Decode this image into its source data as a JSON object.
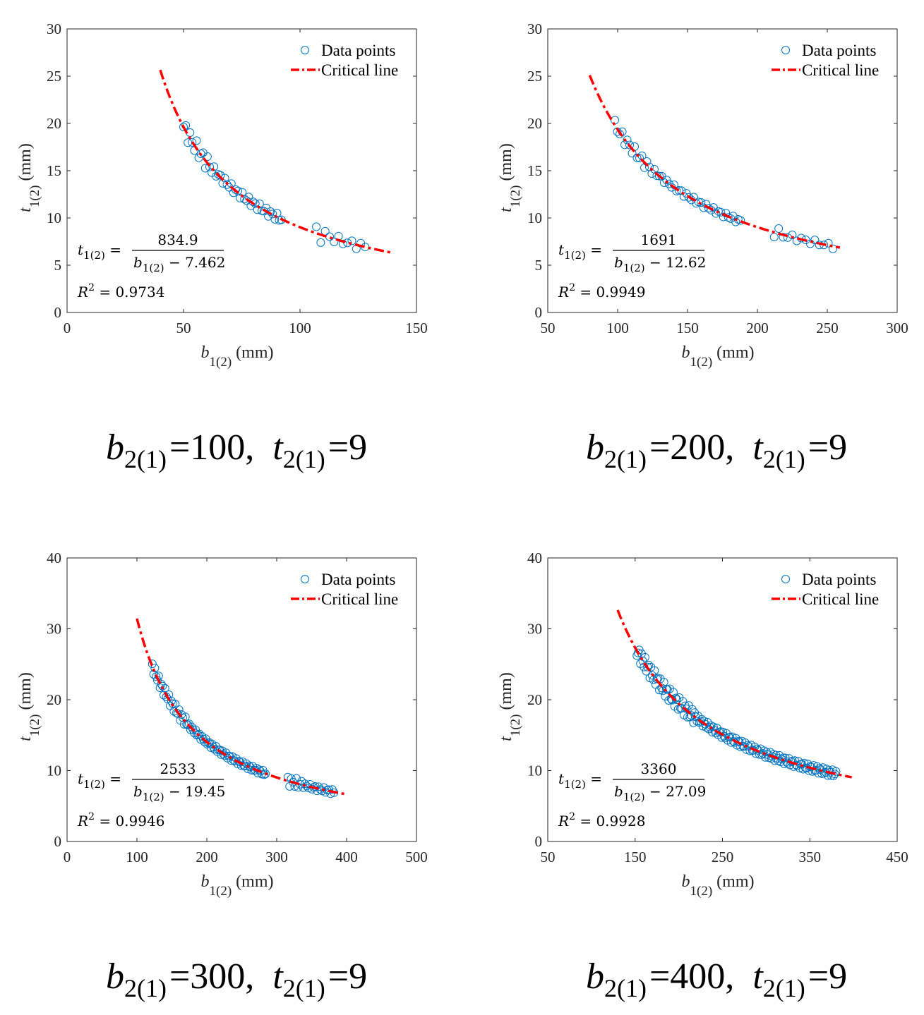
{
  "chart_data": [
    {
      "type": "scatter",
      "xlim": [
        0,
        150
      ],
      "xticks": [
        0,
        50,
        100,
        150
      ],
      "ylim": [
        0,
        30
      ],
      "yticks": [
        0,
        5,
        10,
        15,
        20,
        25,
        30
      ],
      "xlabel": "b",
      "xlabel_sub": "1(2)",
      "xlabel_unit": " (mm)",
      "ylabel": "t",
      "ylabel_sub": "1(2)",
      "ylabel_unit": " (mm)",
      "legend": [
        "Data points",
        "Critical line"
      ],
      "fit": {
        "a": 834.9,
        "b": 7.462,
        "x_range": [
          40,
          139
        ]
      },
      "equation": {
        "lhs": "t",
        "lhs_sub": "1(2)",
        "eq": " =",
        "numerator": "834.9",
        "den_var": "b",
        "den_sub": "1(2)",
        "den_rest": " − 7.462"
      },
      "r2": {
        "label": "R",
        "sup": "2",
        "value": " = 0.9734"
      },
      "points": {
        "segments": [
          {
            "x_range": [
              50,
              92
            ],
            "count": 46
          },
          {
            "x_range": [
              107,
              128
            ],
            "count": 12
          }
        ],
        "scatter": 0.6
      },
      "caption": {
        "b_var": "b",
        "b_sub": "2(1)",
        "b_val": "=100,",
        "t_var": "t",
        "t_sub": "2(1)",
        "t_val": "=9"
      }
    },
    {
      "type": "scatter",
      "xlim": [
        50,
        300
      ],
      "xticks": [
        50,
        100,
        150,
        200,
        250,
        300
      ],
      "ylim": [
        0,
        30
      ],
      "yticks": [
        0,
        5,
        10,
        15,
        20,
        25,
        30
      ],
      "xlabel": "b",
      "xlabel_sub": "1(2)",
      "xlabel_unit": " (mm)",
      "ylabel": "t",
      "ylabel_sub": "1(2)",
      "ylabel_unit": " (mm)",
      "legend": [
        "Data points",
        "Critical line"
      ],
      "fit": {
        "a": 1691,
        "b": 12.62,
        "x_range": [
          80,
          259
        ]
      },
      "equation": {
        "lhs": "t",
        "lhs_sub": "1(2)",
        "eq": " =",
        "numerator": "1691",
        "den_var": "b",
        "den_sub": "1(2)",
        "den_rest": " − 12.62"
      },
      "r2": {
        "label": "R",
        "sup": "2",
        "value": " = 0.9949"
      },
      "points": {
        "segments": [
          {
            "x_range": [
              98,
              188
            ],
            "count": 52
          },
          {
            "x_range": [
              212,
              254
            ],
            "count": 14
          }
        ],
        "scatter": 0.4
      },
      "caption": {
        "b_var": "b",
        "b_sub": "2(1)",
        "b_val": "=200,",
        "t_var": "t",
        "t_sub": "2(1)",
        "t_val": "=9"
      }
    },
    {
      "type": "scatter",
      "xlim": [
        0,
        500
      ],
      "xticks": [
        0,
        100,
        200,
        300,
        400,
        500
      ],
      "ylim": [
        0,
        40
      ],
      "yticks": [
        0,
        10,
        20,
        30,
        40
      ],
      "xlabel": "b",
      "xlabel_sub": "1(2)",
      "xlabel_unit": " (mm)",
      "ylabel": "t",
      "ylabel_sub": "1(2)",
      "ylabel_unit": " (mm)",
      "legend": [
        "Data points",
        "Critical line"
      ],
      "fit": {
        "a": 2533,
        "b": 19.45,
        "x_range": [
          100,
          398
        ]
      },
      "equation": {
        "lhs": "t",
        "lhs_sub": "1(2)",
        "eq": " =",
        "numerator": "2533",
        "den_var": "b",
        "den_sub": "1(2)",
        "den_rest": " − 19.45"
      },
      "r2": {
        "label": "R",
        "sup": "2",
        "value": " = 0.9946"
      },
      "points": {
        "segments": [
          {
            "x_range": [
              122,
              284
            ],
            "count": 90
          },
          {
            "x_range": [
              316,
              382
            ],
            "count": 28
          }
        ],
        "scatter": 0.5
      },
      "caption": {
        "b_var": "b",
        "b_sub": "2(1)",
        "b_val": "=300,",
        "t_var": "t",
        "t_sub": "2(1)",
        "t_val": "=9"
      }
    },
    {
      "type": "scatter",
      "xlim": [
        50,
        450
      ],
      "xticks": [
        50,
        150,
        250,
        350,
        450
      ],
      "ylim": [
        0,
        40
      ],
      "yticks": [
        0,
        10,
        20,
        30,
        40
      ],
      "xlabel": "b",
      "xlabel_sub": "1(2)",
      "xlabel_unit": " (mm)",
      "ylabel": "t",
      "ylabel_sub": "1(2)",
      "ylabel_unit": " (mm)",
      "legend": [
        "Data points",
        "Critical line"
      ],
      "fit": {
        "a": 3360,
        "b": 27.09,
        "x_range": [
          130,
          398
        ]
      },
      "equation": {
        "lhs": "t",
        "lhs_sub": "1(2)",
        "eq": " =",
        "numerator": "3360",
        "den_var": "b",
        "den_sub": "1(2)",
        "den_rest": " − 27.09"
      },
      "r2": {
        "label": "R",
        "sup": "2",
        "value": " = 0.9928"
      },
      "points": {
        "segments": [
          {
            "x_range": [
              152,
              380
            ],
            "count": 170
          }
        ],
        "scatter": 0.7
      },
      "caption": {
        "b_var": "b",
        "b_sub": "2(1)",
        "b_val": "=400,",
        "t_var": "t",
        "t_sub": "2(1)",
        "t_val": "=9"
      }
    }
  ],
  "colors": {
    "points": "#0072BD",
    "line": "#FF0000",
    "axis": "#262626"
  }
}
